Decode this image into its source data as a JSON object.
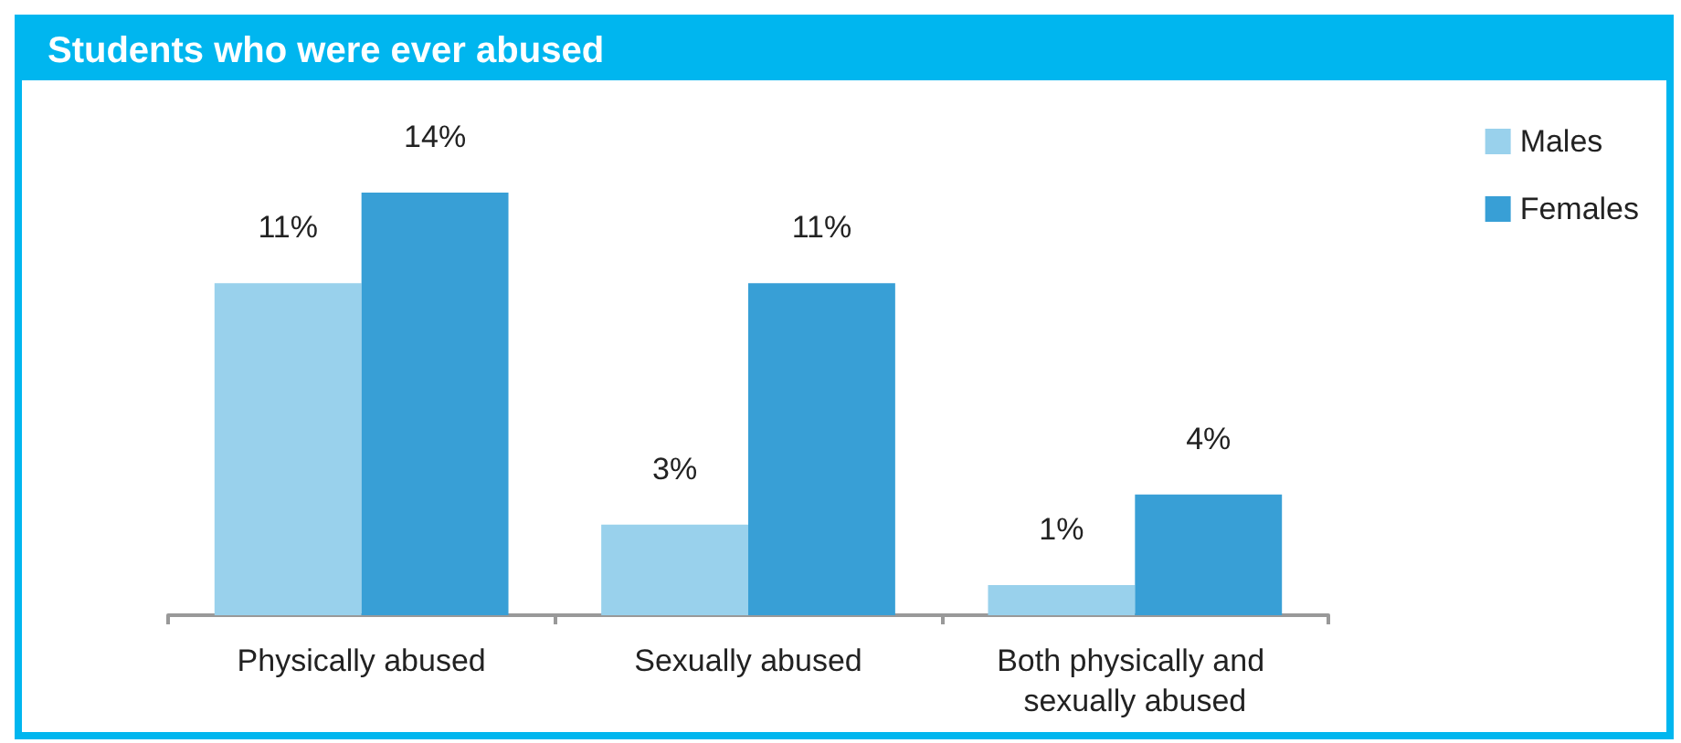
{
  "chart_data": {
    "type": "bar",
    "title": "Students who were ever abused",
    "categories": [
      "Physically abused",
      "Sexually abused",
      "Both physically and sexually abused"
    ],
    "series": [
      {
        "name": "Males",
        "color": "#99d1ec",
        "values": [
          11,
          3,
          1
        ],
        "value_labels": [
          "11%",
          "3%",
          "1%"
        ]
      },
      {
        "name": "Females",
        "color": "#389fd6",
        "values": [
          14,
          11,
          4
        ],
        "value_labels": [
          "14%",
          "11%",
          "4%"
        ]
      }
    ],
    "legend": "top right"
  }
}
